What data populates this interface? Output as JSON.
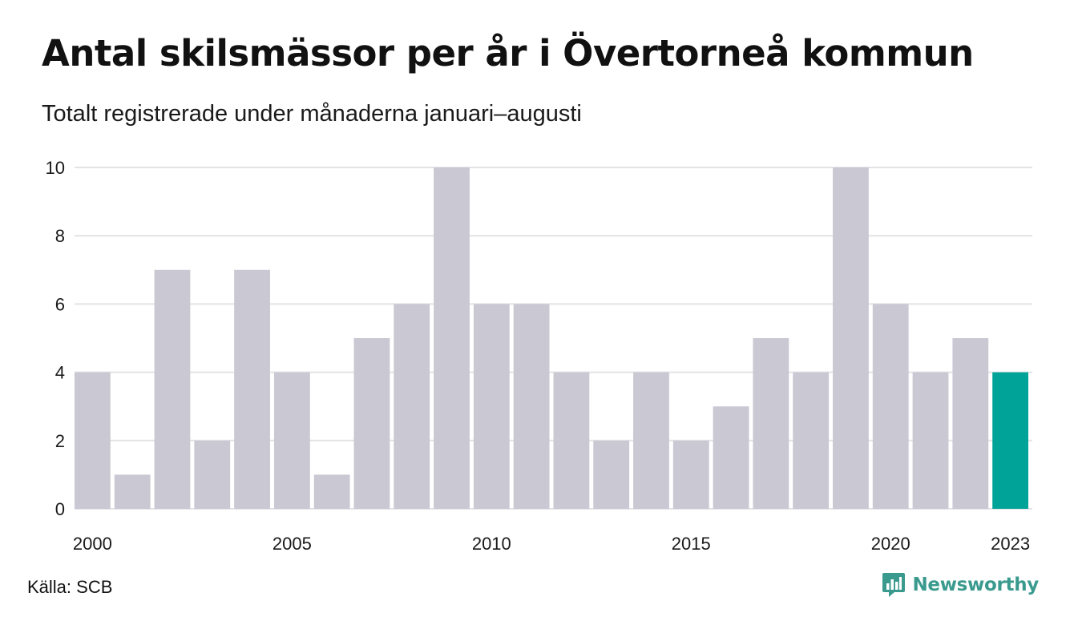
{
  "header": {
    "title": "Antal skilsmässor per år i Övertorneå kommun",
    "subtitle": "Totalt registrerade under månaderna januari–augusti"
  },
  "footer": {
    "source": "Källa: SCB",
    "brand": "Newsworthy"
  },
  "colors": {
    "bar": "#c9c8d3",
    "highlight": "#00a398",
    "grid": "#e3e3e6",
    "brand": "#3a9a8e"
  },
  "icons": {
    "brand_logo": "chart-bubble-icon"
  },
  "chart_data": {
    "type": "bar",
    "categories": [
      "2000",
      "2001",
      "2002",
      "2003",
      "2004",
      "2005",
      "2006",
      "2007",
      "2008",
      "2009",
      "2010",
      "2011",
      "2012",
      "2013",
      "2014",
      "2015",
      "2016",
      "2017",
      "2018",
      "2019",
      "2020",
      "2021",
      "2022",
      "2023"
    ],
    "values": [
      4,
      1,
      7,
      2,
      7,
      4,
      1,
      5,
      6,
      10,
      6,
      6,
      4,
      2,
      4,
      2,
      3,
      5,
      4,
      10,
      6,
      4,
      5,
      4
    ],
    "x_tick_labels": [
      "2000",
      "2005",
      "2010",
      "2015",
      "2020",
      "2023"
    ],
    "y_ticks": [
      0,
      2,
      4,
      6,
      8,
      10
    ],
    "ylim": [
      0,
      10
    ],
    "highlight_category": "2023",
    "grid": true,
    "legend": false
  }
}
